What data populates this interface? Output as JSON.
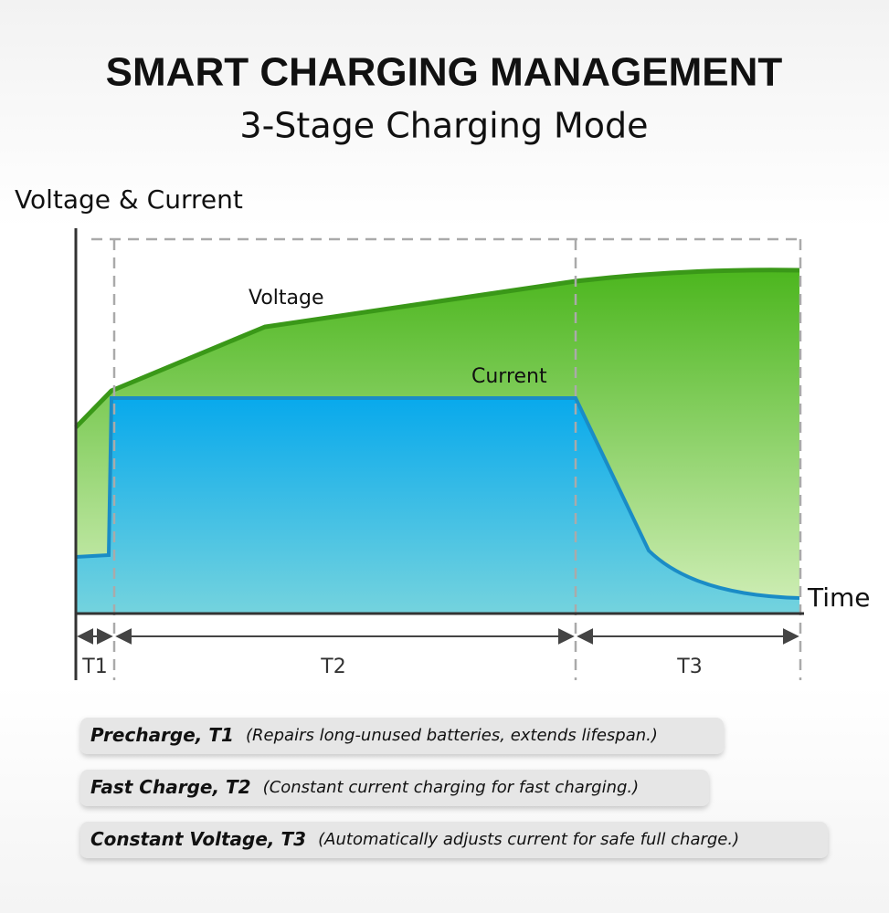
{
  "header": {
    "title": "SMART CHARGING MANAGEMENT",
    "subtitle": "3-Stage Charging Mode"
  },
  "diagram": {
    "y_axis_label": "Voltage & Current",
    "x_axis_label": "Time",
    "voltage_label": "Voltage",
    "current_label": "Current",
    "stages": [
      "T1",
      "T2",
      "T3"
    ]
  },
  "notes": [
    {
      "term": "Precharge, T1",
      "description": "(Repairs long-unused batteries, extends lifespan.)"
    },
    {
      "term": "Fast Charge, T2",
      "description": "(Constant current charging for fast charging.)"
    },
    {
      "term": "Constant Voltage, T3",
      "description": "(Automatically adjusts current for safe full charge.)"
    }
  ]
}
